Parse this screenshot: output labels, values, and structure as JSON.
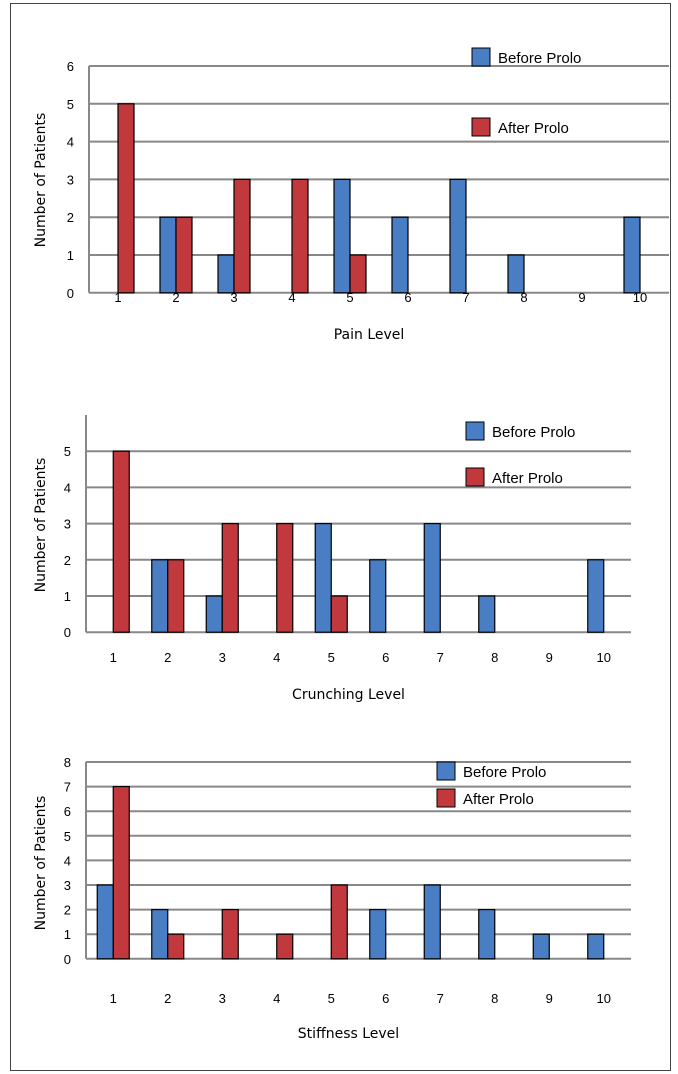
{
  "colors": {
    "before": "#4a7ec4",
    "after": "#c1393c",
    "grid": "#888888"
  },
  "chart_data": [
    {
      "type": "bar",
      "ylabel": "Number of Patients",
      "xlabel": "Pain Level",
      "ylim": [
        0,
        6
      ],
      "y_ticks": [
        0,
        1,
        2,
        3,
        4,
        5,
        6
      ],
      "categories": [
        "1",
        "2",
        "3",
        "4",
        "5",
        "6",
        "7",
        "8",
        "9",
        "10"
      ],
      "legend_position": "top-right",
      "series": [
        {
          "name": "Before Prolo",
          "values": [
            0,
            2,
            1,
            0,
            3,
            2,
            3,
            1,
            0,
            2
          ]
        },
        {
          "name": "After Prolo",
          "values": [
            5,
            2,
            3,
            3,
            1,
            0,
            0,
            0,
            0,
            0
          ]
        }
      ]
    },
    {
      "type": "bar",
      "ylabel": "Number of Patients",
      "xlabel": "Crunching Level",
      "ylim": [
        0,
        6
      ],
      "y_ticks": [
        0,
        1,
        2,
        3,
        4,
        5
      ],
      "categories": [
        "1",
        "2",
        "3",
        "4",
        "5",
        "6",
        "7",
        "8",
        "9",
        "10"
      ],
      "legend_position": "top-right",
      "series": [
        {
          "name": "Before Prolo",
          "values": [
            0,
            2,
            1,
            0,
            3,
            2,
            3,
            1,
            0,
            2
          ]
        },
        {
          "name": "After Prolo",
          "values": [
            5,
            2,
            3,
            3,
            1,
            0,
            0,
            0,
            0,
            0
          ]
        }
      ]
    },
    {
      "type": "bar",
      "ylabel": "Number of Patients",
      "xlabel": "Stiffness Level",
      "ylim": [
        0,
        8
      ],
      "y_ticks": [
        0,
        1,
        2,
        3,
        4,
        5,
        6,
        7,
        8
      ],
      "categories": [
        "1",
        "2",
        "3",
        "4",
        "5",
        "6",
        "7",
        "8",
        "9",
        "10"
      ],
      "legend_position": "top-right",
      "series": [
        {
          "name": "Before Prolo",
          "values": [
            3,
            2,
            0,
            0,
            0,
            2,
            3,
            2,
            1,
            1
          ]
        },
        {
          "name": "After Prolo",
          "values": [
            7,
            1,
            2,
            1,
            3,
            0,
            0,
            0,
            0,
            0
          ]
        }
      ]
    }
  ]
}
